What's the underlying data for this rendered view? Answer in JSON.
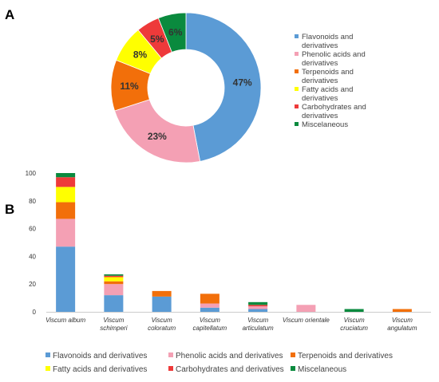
{
  "panels": {
    "a": "A",
    "b": "B"
  },
  "categories": [
    {
      "label": "Flavonoids and derivatives",
      "legend_lines": [
        "Flavonoids and",
        "derivatives"
      ],
      "color": "#5b9bd5"
    },
    {
      "label": "Phenolic acids and derivatives",
      "legend_lines": [
        "Phenolic acids and",
        "derivatives"
      ],
      "color": "#f4a0b4"
    },
    {
      "label": "Terpenoids and derivatives",
      "legend_lines": [
        "Terpenoids and",
        "derivatives"
      ],
      "color": "#f26f0a"
    },
    {
      "label": "Fatty acids and derivatives",
      "legend_lines": [
        "Fatty acids and",
        "derivatives"
      ],
      "color": "#ffff00"
    },
    {
      "label": "Carbohydrates and derivatives",
      "legend_lines": [
        "Carbohydrates and",
        "derivatives"
      ],
      "color": "#ee3a3a"
    },
    {
      "label": "Miscelaneous",
      "legend_lines": [
        "Miscelaneous"
      ],
      "color": "#0a8a3e"
    }
  ],
  "chart_data": [
    {
      "type": "pie",
      "variant": "donut",
      "labels": [
        "Flavonoids and derivatives",
        "Phenolic acids and derivatives",
        "Terpenoids and derivatives",
        "Fatty acids and derivatives",
        "Carbohydrates and derivatives",
        "Miscelaneous"
      ],
      "values": [
        47,
        23,
        11,
        8,
        5,
        6
      ],
      "value_labels": [
        "47%",
        "23%",
        "11%",
        "8%",
        "5%",
        "6%"
      ],
      "legend": "right"
    },
    {
      "type": "bar",
      "stacked": true,
      "categories": [
        "Viscum album",
        "Viscum schimperi",
        "Viscum coloratum",
        "Viscum capitellatum",
        "Viscum articulatum",
        "Viscum orientale",
        "Viscum cruciatum",
        "Viscum angulatum"
      ],
      "category_lines": [
        [
          "Viscum album"
        ],
        [
          "Viscum",
          "schimperi"
        ],
        [
          "Viscum",
          "coloratum"
        ],
        [
          "Viscum",
          "capitellatum"
        ],
        [
          "Viscum",
          "articulatum"
        ],
        [
          "Viscum orientale"
        ],
        [
          "Viscum",
          "cruciatum"
        ],
        [
          "Viscum",
          "angulatum"
        ]
      ],
      "series": [
        {
          "name": "Flavonoids and derivatives",
          "values": [
            47,
            12,
            11,
            3,
            2,
            0,
            0,
            0
          ]
        },
        {
          "name": "Phenolic acids and derivatives",
          "values": [
            20,
            8,
            0,
            3,
            2,
            5,
            0,
            0
          ]
        },
        {
          "name": "Terpenoids and derivatives",
          "values": [
            12,
            2,
            4,
            7,
            0,
            0,
            0,
            2
          ]
        },
        {
          "name": "Fatty acids and derivatives",
          "values": [
            11,
            3,
            0,
            0,
            0,
            0,
            0,
            0
          ]
        },
        {
          "name": "Carbohydrates and derivatives",
          "values": [
            7,
            1,
            0,
            0,
            1,
            0,
            0,
            0
          ]
        },
        {
          "name": "Miscelaneous",
          "values": [
            3,
            1,
            0,
            0,
            2,
            0,
            2,
            0
          ]
        }
      ],
      "ylim": [
        0,
        100
      ],
      "yticks": [
        0,
        20,
        40,
        60,
        80,
        100
      ],
      "legend": "bottom",
      "grid": false
    }
  ]
}
